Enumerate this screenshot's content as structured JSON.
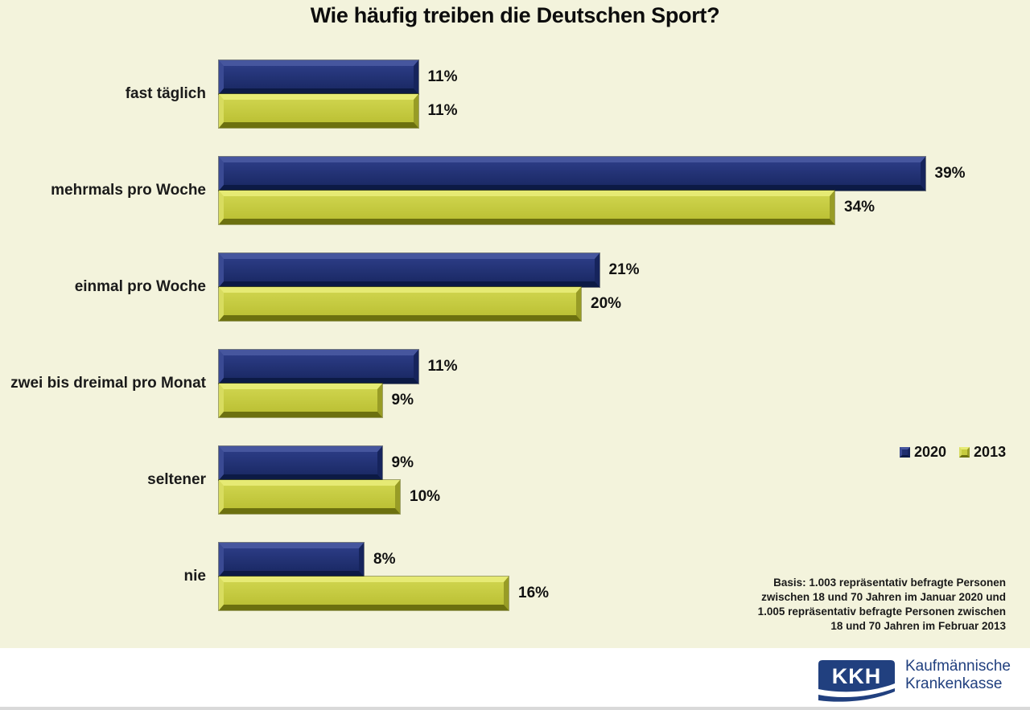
{
  "title": "Wie häufig treiben die Deutschen Sport?",
  "chart_data": {
    "type": "bar",
    "orientation": "horizontal",
    "title": "Wie häufig treiben die Deutschen Sport?",
    "categories": [
      "fast täglich",
      "mehrmals pro Woche",
      "einmal pro Woche",
      "zwei bis dreimal pro Monat",
      "seltener",
      "nie"
    ],
    "series": [
      {
        "name": "2020",
        "color": "#1f2e6e",
        "values": [
          11,
          39,
          21,
          11,
          9,
          8
        ]
      },
      {
        "name": "2013",
        "color": "#c6cb3e",
        "values": [
          11,
          34,
          20,
          9,
          10,
          16
        ]
      }
    ],
    "value_suffix": "%",
    "xlabel": "",
    "ylabel": "",
    "xlim": [
      0,
      43
    ],
    "grid": false,
    "legend_position": "middle-right",
    "data_labels": true,
    "background": "#f3f3dc"
  },
  "legend": {
    "items": [
      {
        "label": "2020",
        "color": "#1f2e6e"
      },
      {
        "label": "2013",
        "color": "#c6cb3e"
      }
    ]
  },
  "footnote": {
    "lines": [
      "Basis: 1.003 repräsentativ befragte Personen",
      "zwischen 18 und 70 Jahren im Januar 2020 und",
      "1.005 repräsentativ befragte Personen zwischen",
      "18 und 70 Jahren im Februar 2013"
    ]
  },
  "branding": {
    "logo_text": "KKH",
    "name_line1": "Kaufmännische",
    "name_line2": "Krankenkasse",
    "logo_color": "#21407f"
  },
  "colors": {
    "chart_background": "#f3f3dc",
    "footer_background": "#ffffff",
    "footer_edge": "#d9d9d9",
    "text": "#111111",
    "bar_2020": "#1f2e6e",
    "bar_2013": "#c6cb3e"
  }
}
